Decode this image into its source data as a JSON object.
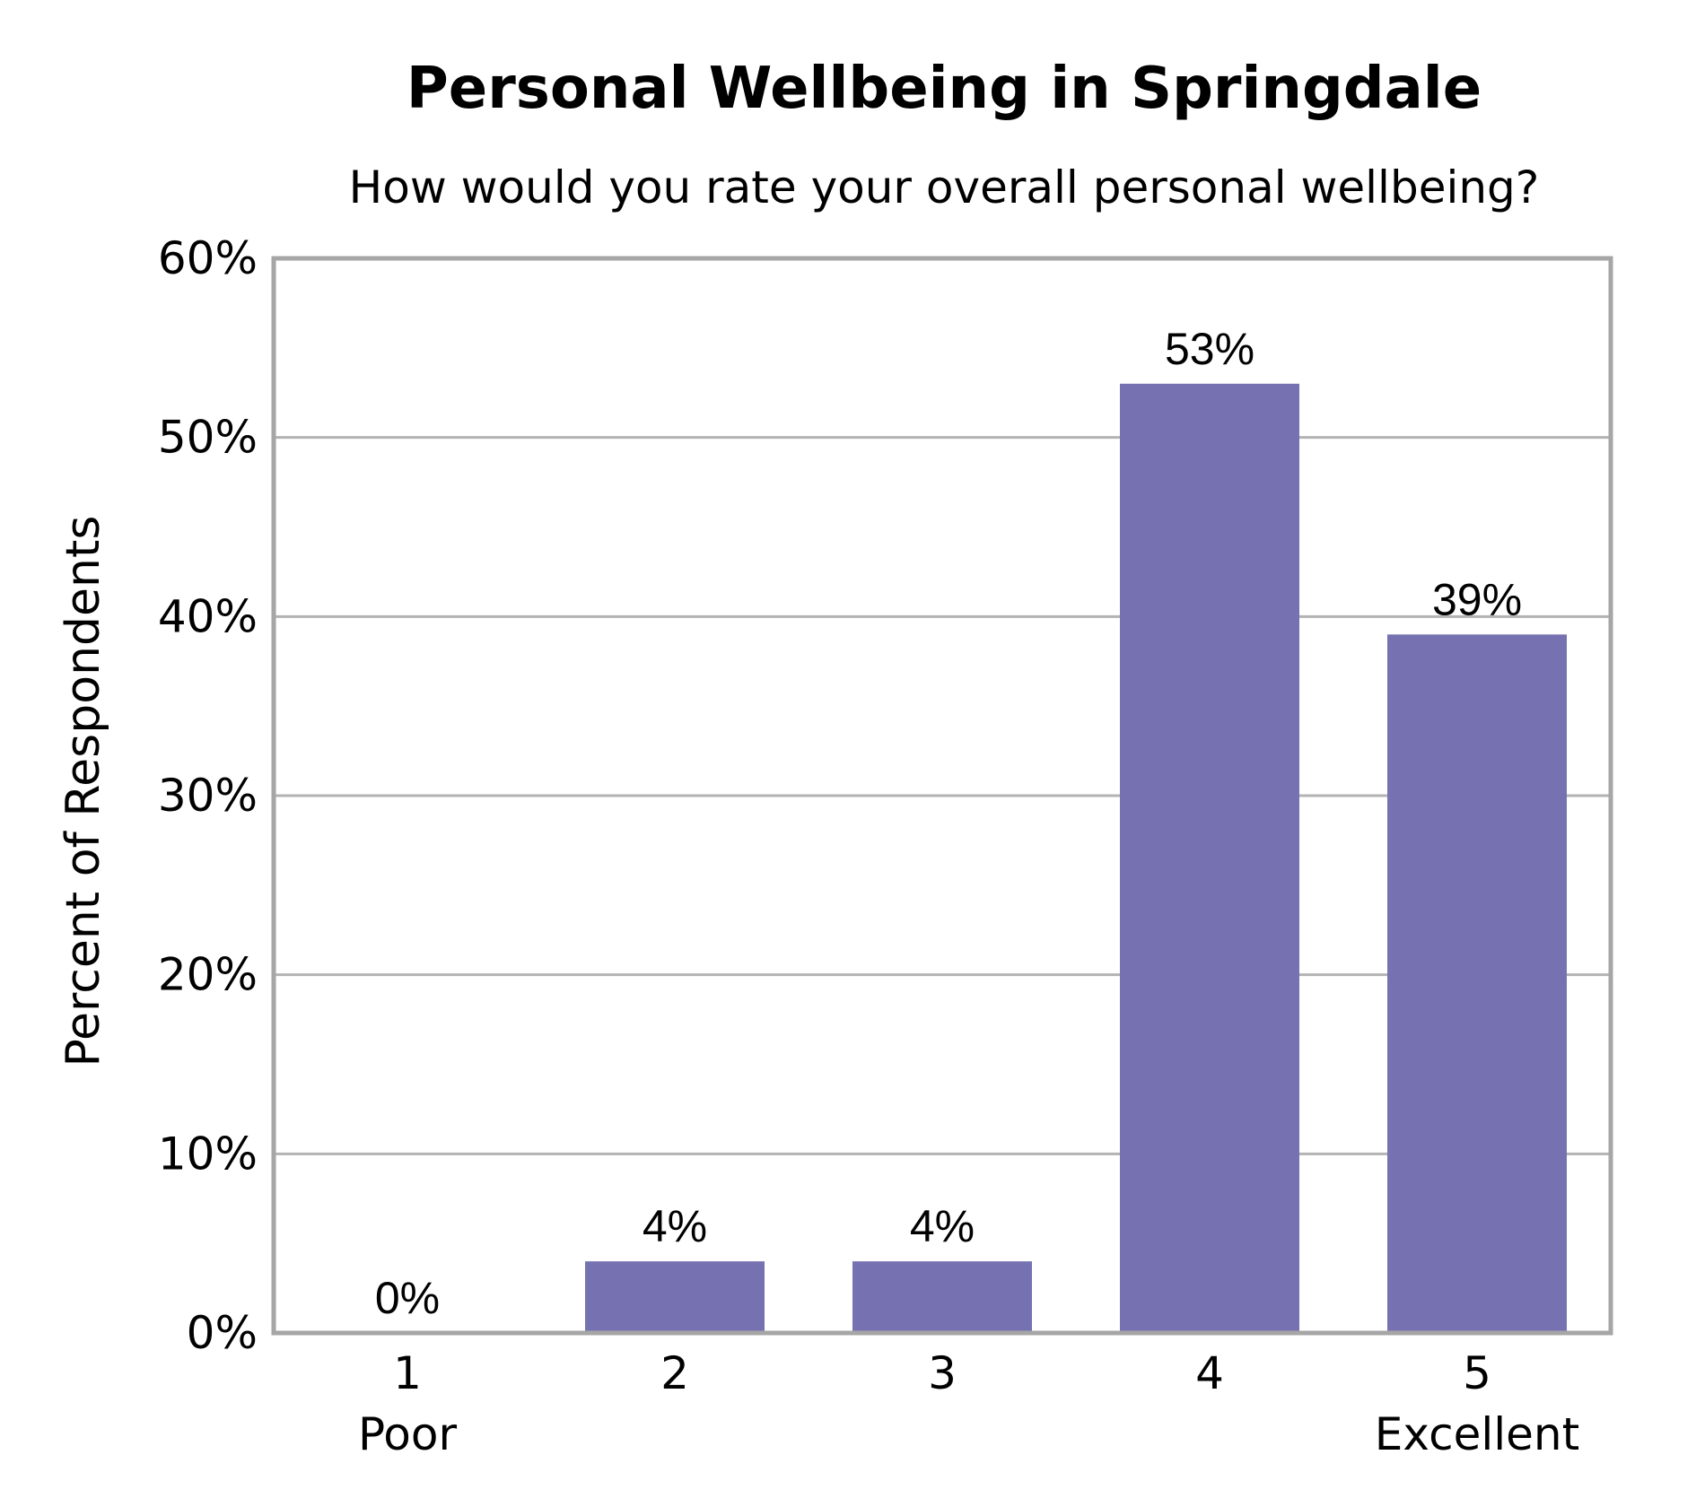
{
  "chart_data": {
    "type": "bar",
    "title": "Personal Wellbeing in Springdale",
    "subtitle": "How would you rate your overall personal wellbeing?",
    "ylabel": "Percent of Respondents",
    "xlabel": "",
    "categories": [
      "1",
      "2",
      "3",
      "4",
      "5"
    ],
    "category_sublabels": [
      "Poor",
      "",
      "",
      "",
      "Excellent"
    ],
    "values": [
      0,
      4,
      4,
      53,
      39
    ],
    "data_labels": [
      "0%",
      "4%",
      "4%",
      "53%",
      "39%"
    ],
    "ylim": [
      0,
      60
    ],
    "y_ticks": [
      0,
      10,
      20,
      30,
      40,
      50,
      60
    ],
    "y_tick_labels": [
      "0%",
      "10%",
      "20%",
      "30%",
      "40%",
      "50%",
      "60%"
    ],
    "grid": true,
    "legend": "none",
    "colors": {
      "bar": "#7672B1",
      "grid": "#B3B3B3",
      "frame": "#A6A6A6"
    }
  }
}
